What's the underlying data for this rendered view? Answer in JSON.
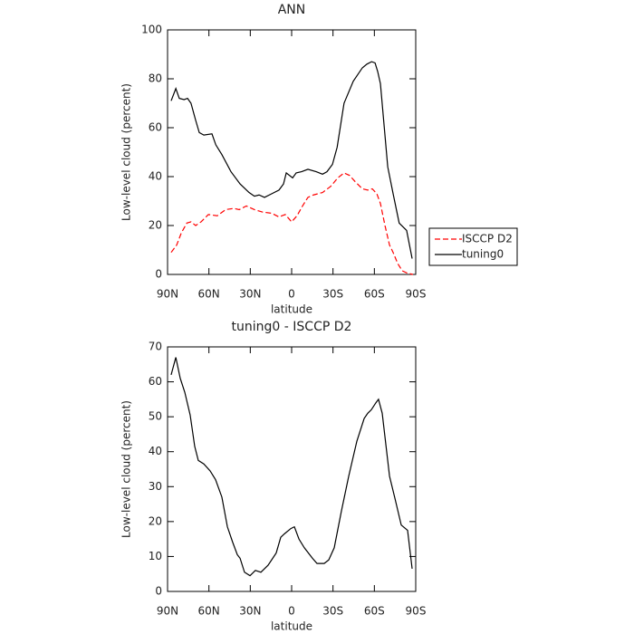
{
  "chart_data": [
    {
      "type": "line",
      "title": "ANN",
      "xlabel": "latitude",
      "ylabel": "Low-level cloud (percent)",
      "xlim": [
        90,
        -90
      ],
      "xticks": [
        {
          "value": 90,
          "label": "90N"
        },
        {
          "value": 60,
          "label": "60N"
        },
        {
          "value": 30,
          "label": "30N"
        },
        0,
        {
          "value": -30,
          "label": "30S"
        },
        {
          "value": -60,
          "label": "60S"
        },
        {
          "value": -90,
          "label": "90S"
        }
      ],
      "ylim": [
        0,
        100
      ],
      "yticks": [
        0,
        20,
        40,
        60,
        80,
        100
      ],
      "legend": "right",
      "series": [
        {
          "name": "ISCCP D2",
          "color": "#ff0000",
          "style": "dashed",
          "x": [
            87.4,
            83.4,
            80,
            76,
            73,
            69.6,
            65.7,
            60.4,
            53.9,
            47.9,
            42,
            38,
            32.8,
            27,
            21,
            14.4,
            9.2,
            4.6,
            0,
            -3.9,
            -7.9,
            -11.8,
            -15.8,
            -22.4,
            -28.3,
            -33.5,
            -38,
            -42,
            -46,
            -51.3,
            -55.2,
            -58.5,
            -61.8,
            -64.4,
            -67.7,
            -71,
            -73.6,
            -76.9,
            -80.2,
            -84,
            -88
          ],
          "values": [
            9,
            12,
            17,
            21,
            21.5,
            20,
            21.5,
            24.5,
            24,
            26.5,
            27,
            26.5,
            28,
            26.5,
            25.5,
            25,
            23.5,
            24.5,
            21.5,
            24,
            28,
            31.5,
            32.5,
            33.5,
            36,
            39.5,
            41.5,
            40.5,
            38,
            35,
            34.5,
            35,
            33,
            29,
            20,
            12,
            9,
            4.5,
            1.5,
            0.5,
            0
          ]
        },
        {
          "name": "tuning0",
          "color": "#000000",
          "style": "solid",
          "x": [
            87.4,
            84,
            81.5,
            78,
            75.5,
            73,
            69.6,
            67,
            63.7,
            57.8,
            55,
            50.6,
            44,
            37.4,
            30.9,
            27,
            23.6,
            19.7,
            14.4,
            9.2,
            5.9,
            3.9,
            -0.7,
            -3.3,
            -7.2,
            -11.8,
            -17.8,
            -22.4,
            -25.6,
            -29.6,
            -33,
            -38,
            -44.7,
            -51.3,
            -54.6,
            -58,
            -60.5,
            -62.4,
            -64.4,
            -69.7,
            -73.6,
            -78,
            -83.4,
            -87.4
          ],
          "values": [
            71,
            76,
            72,
            71.5,
            72,
            70,
            63,
            58,
            57,
            57.5,
            53,
            49,
            42,
            37,
            33.5,
            32,
            32.5,
            31.5,
            33,
            34.5,
            37,
            41.5,
            39.5,
            41.5,
            42,
            43,
            42,
            41,
            42,
            45,
            52,
            70,
            79,
            84.5,
            86,
            87,
            86.5,
            83,
            78,
            44,
            33,
            21,
            18,
            6.5
          ]
        }
      ]
    },
    {
      "type": "line",
      "title": "tuning0 - ISCCP D2",
      "xlabel": "latitude",
      "ylabel": "Low-level cloud (percent)",
      "xlim": [
        90,
        -90
      ],
      "xticks": [
        {
          "value": 90,
          "label": "90N"
        },
        {
          "value": 60,
          "label": "60N"
        },
        {
          "value": 30,
          "label": "30N"
        },
        0,
        {
          "value": -30,
          "label": "30S"
        },
        {
          "value": -60,
          "label": "60S"
        },
        {
          "value": -90,
          "label": "90S"
        }
      ],
      "ylim": [
        0,
        70
      ],
      "yticks": [
        0,
        10,
        20,
        30,
        40,
        50,
        60,
        70
      ],
      "series": [
        {
          "color": "#000000",
          "style": "solid",
          "x": [
            87.4,
            84,
            80.8,
            77.5,
            73.6,
            70.3,
            67.7,
            63.7,
            59.1,
            55.2,
            50.6,
            46.6,
            42.7,
            39.4,
            37.4,
            34.2,
            30.2,
            26.3,
            22.3,
            17.1,
            11.2,
            7.9,
            5.2,
            0.6,
            -2,
            -5.3,
            -9.2,
            -15.1,
            -18.4,
            -23.6,
            -26.9,
            -30.9,
            -36.1,
            -41.4,
            -47.3,
            -52.6,
            -55.2,
            -57.8,
            -61.1,
            -63,
            -65.7,
            -71,
            -75,
            -79.5,
            -84.1,
            -87.4
          ],
          "values": [
            62,
            67,
            61,
            57,
            50.5,
            41.5,
            37.5,
            36.5,
            34.5,
            32,
            27,
            18.5,
            14,
            10.5,
            9.5,
            5.5,
            4.5,
            6,
            5.5,
            7.5,
            11,
            15.5,
            16.5,
            18,
            18.5,
            15,
            12.5,
            9.5,
            8,
            8,
            9,
            12.5,
            23,
            33,
            43,
            49.5,
            51,
            52,
            54,
            55,
            51,
            33,
            26.5,
            19,
            17.5,
            6.5
          ]
        }
      ]
    }
  ]
}
